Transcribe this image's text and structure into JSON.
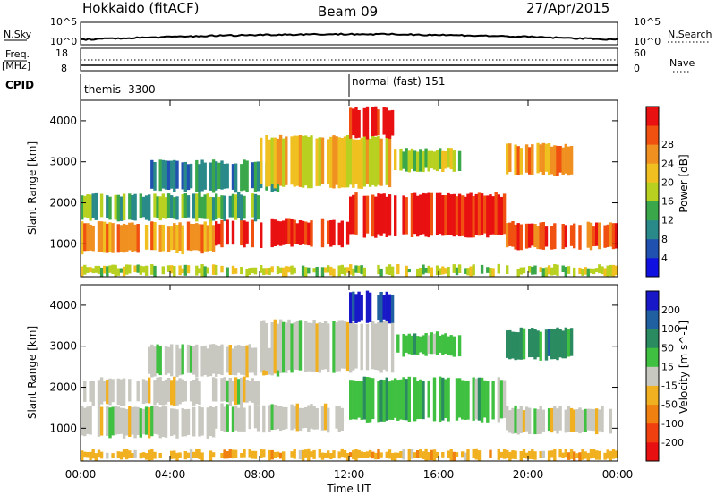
{
  "header": {
    "station": "Hokkaido (fitACF)",
    "beam": "Beam 09",
    "date": "27/Apr/2015"
  },
  "strip_labels": {
    "nsky": "N.Sky",
    "nsky_top": "10^5",
    "nsky_bottom": "10^0",
    "freq": "Freq.",
    "freq_unit": "[MHz]",
    "freq_top": "18",
    "freq_bottom": "8",
    "cpid": "CPID",
    "nsearch": "N.Search",
    "nsearch_top": "10^5",
    "nsearch_bottom": "10^0",
    "nave": "Nave",
    "nave_top": "60",
    "nave_bottom": "0"
  },
  "modes": {
    "first": "themis -3300",
    "second": "normal (fast) 151"
  },
  "chart_data": [
    {
      "type": "heatmap",
      "panel": "power",
      "ylabel": "Slant Range [km]",
      "yticks": [
        "1000",
        "2000",
        "3000",
        "4000"
      ],
      "ylim": [
        200,
        4500
      ],
      "xlim_hours": [
        0,
        24
      ],
      "colorbar": {
        "label": "Power [dB]",
        "ticks": [
          "4",
          "8",
          "12",
          "16",
          "20",
          "24",
          "28"
        ],
        "colors": [
          "#1010e0",
          "#2050b0",
          "#2a8a8a",
          "#3aa84a",
          "#b8d020",
          "#f0c020",
          "#f09020",
          "#f05010",
          "#e81010"
        ]
      }
    },
    {
      "type": "heatmap",
      "panel": "velocity",
      "ylabel": "Slant Range [km]",
      "yticks": [
        "1000",
        "2000",
        "3000",
        "4000"
      ],
      "ylim": [
        200,
        4500
      ],
      "xlim_hours": [
        0,
        24
      ],
      "xlabel": "Time UT",
      "xticks": [
        "00:00",
        "04:00",
        "08:00",
        "12:00",
        "16:00",
        "20:00",
        "00:00"
      ],
      "colorbar": {
        "label": "Velocity [m s^-1]",
        "ticks": [
          "200",
          "100",
          "50",
          "15",
          "-15",
          "-50",
          "-100",
          "-200"
        ],
        "colors": [
          "#1818c8",
          "#2060a0",
          "#2a8a60",
          "#40c040",
          "#c8c8c0",
          "#f0b020",
          "#f08010",
          "#f04010",
          "#e81010"
        ]
      }
    }
  ]
}
